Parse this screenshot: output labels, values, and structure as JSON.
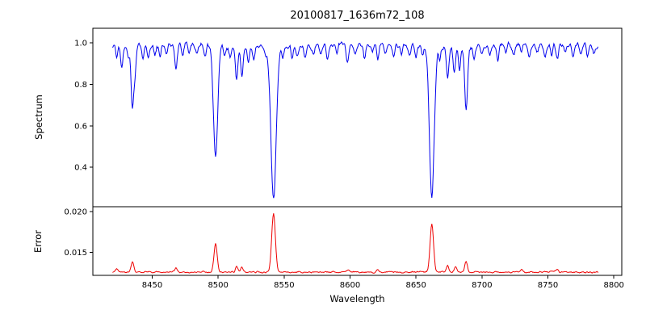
{
  "title": "20100817_1636m72_108",
  "labels": {
    "xlabel": "Wavelength",
    "ylabel_top": "Spectrum",
    "ylabel_bottom": "Error"
  },
  "chart_data": {
    "type": "line",
    "title": "20100817_1636m72_108",
    "xlabel": "Wavelength",
    "legend": "none",
    "grid": false,
    "xlim": [
      8405,
      8806
    ],
    "x_range": [
      8420,
      8788
    ],
    "x_step": 0.5,
    "xticks": [
      {
        "v": 8450,
        "label": "8450"
      },
      {
        "v": 8500,
        "label": "8500"
      },
      {
        "v": 8550,
        "label": "8550"
      },
      {
        "v": 8600,
        "label": "8600"
      },
      {
        "v": 8650,
        "label": "8650"
      },
      {
        "v": 8700,
        "label": "8700"
      },
      {
        "v": 8750,
        "label": "8750"
      },
      {
        "v": 8800,
        "label": "8800"
      }
    ],
    "noise_seed": 1636108,
    "spectrum_panel": {
      "ylabel": "Spectrum",
      "color": "#0000ee",
      "ylim": [
        0.21,
        1.07
      ],
      "yticks": [
        {
          "v": 0.4,
          "label": "0.4"
        },
        {
          "v": 0.6,
          "label": "0.6"
        },
        {
          "v": 0.8,
          "label": "0.8"
        },
        {
          "v": 1.0,
          "label": "1.0"
        }
      ],
      "continuum": 0.985,
      "noise_amp": 0.02,
      "waves": [
        [
          0.006,
          21,
          0.0
        ],
        [
          0.004,
          9.5,
          1.7
        ]
      ],
      "lines": [
        [
          8423,
          0.05,
          0.8
        ],
        [
          8427,
          0.1,
          0.8
        ],
        [
          8432,
          0.06,
          0.8
        ],
        [
          8435,
          0.3,
          1.0
        ],
        [
          8437,
          0.12,
          0.8
        ],
        [
          8443,
          0.06,
          0.8
        ],
        [
          8447,
          0.05,
          0.8
        ],
        [
          8452,
          0.04,
          0.8
        ],
        [
          8456,
          0.05,
          0.8
        ],
        [
          8461,
          0.04,
          0.8
        ],
        [
          8468,
          0.12,
          1.0
        ],
        [
          8473,
          0.05,
          0.8
        ],
        [
          8478,
          0.04,
          0.8
        ],
        [
          8484,
          0.05,
          0.8
        ],
        [
          8490,
          0.06,
          0.8
        ],
        [
          8498,
          0.54,
          1.6
        ],
        [
          8505,
          0.05,
          0.8
        ],
        [
          8509,
          0.05,
          0.8
        ],
        [
          8514,
          0.17,
          0.9
        ],
        [
          8518,
          0.14,
          0.9
        ],
        [
          8523,
          0.08,
          0.8
        ],
        [
          8527,
          0.06,
          0.8
        ],
        [
          8536,
          0.05,
          0.8
        ],
        [
          8542,
          0.74,
          2.0
        ],
        [
          8549,
          0.05,
          0.8
        ],
        [
          8556,
          0.05,
          0.8
        ],
        [
          8560,
          0.04,
          0.8
        ],
        [
          8566,
          0.05,
          0.8
        ],
        [
          8572,
          0.04,
          0.8
        ],
        [
          8578,
          0.05,
          0.8
        ],
        [
          8583,
          0.06,
          0.8
        ],
        [
          8590,
          0.04,
          0.8
        ],
        [
          8598,
          0.09,
          0.9
        ],
        [
          8604,
          0.05,
          0.8
        ],
        [
          8611,
          0.06,
          0.8
        ],
        [
          8617,
          0.04,
          0.8
        ],
        [
          8621,
          0.07,
          0.8
        ],
        [
          8627,
          0.04,
          0.8
        ],
        [
          8633,
          0.05,
          0.8
        ],
        [
          8639,
          0.04,
          0.8
        ],
        [
          8645,
          0.05,
          0.8
        ],
        [
          8650,
          0.06,
          0.8
        ],
        [
          8655,
          0.05,
          0.8
        ],
        [
          8662,
          0.72,
          1.8
        ],
        [
          8668,
          0.06,
          0.8
        ],
        [
          8674,
          0.15,
          0.9
        ],
        [
          8679,
          0.12,
          0.9
        ],
        [
          8683,
          0.1,
          0.8
        ],
        [
          8688,
          0.3,
          1.1
        ],
        [
          8694,
          0.06,
          0.8
        ],
        [
          8700,
          0.05,
          0.8
        ],
        [
          8706,
          0.04,
          0.8
        ],
        [
          8712,
          0.07,
          0.8
        ],
        [
          8718,
          0.04,
          0.8
        ],
        [
          8724,
          0.05,
          0.8
        ],
        [
          8730,
          0.04,
          0.8
        ],
        [
          8736,
          0.06,
          0.8
        ],
        [
          8742,
          0.04,
          0.8
        ],
        [
          8748,
          0.05,
          0.8
        ],
        [
          8753,
          0.04,
          0.8
        ],
        [
          8757,
          0.07,
          0.8
        ],
        [
          8763,
          0.04,
          0.8
        ],
        [
          8769,
          0.05,
          0.8
        ],
        [
          8775,
          0.04,
          0.8
        ],
        [
          8780,
          0.05,
          0.8
        ],
        [
          8785,
          0.04,
          0.8
        ]
      ]
    },
    "error_panel": {
      "ylabel": "Error",
      "color": "#ee0000",
      "ylim": [
        0.0122,
        0.0206
      ],
      "yticks": [
        {
          "v": 0.015,
          "label": "0.015"
        },
        {
          "v": 0.02,
          "label": "0.020"
        }
      ],
      "baseline": 0.0126,
      "noise_amp": 0.00015,
      "peaks": [
        [
          8423,
          0.0004,
          1.0
        ],
        [
          8435,
          0.0012,
          1.0
        ],
        [
          8468,
          0.0004,
          1.0
        ],
        [
          8498,
          0.0035,
          1.2
        ],
        [
          8514,
          0.0007,
          0.9
        ],
        [
          8518,
          0.0006,
          0.9
        ],
        [
          8542,
          0.0072,
          1.4
        ],
        [
          8598,
          0.0003,
          0.9
        ],
        [
          8621,
          0.0003,
          0.9
        ],
        [
          8662,
          0.006,
          1.3
        ],
        [
          8674,
          0.0008,
          0.9
        ],
        [
          8680,
          0.0006,
          0.9
        ],
        [
          8688,
          0.0013,
          1.0
        ],
        [
          8730,
          0.0003,
          0.9
        ],
        [
          8757,
          0.0003,
          0.9
        ]
      ]
    }
  }
}
